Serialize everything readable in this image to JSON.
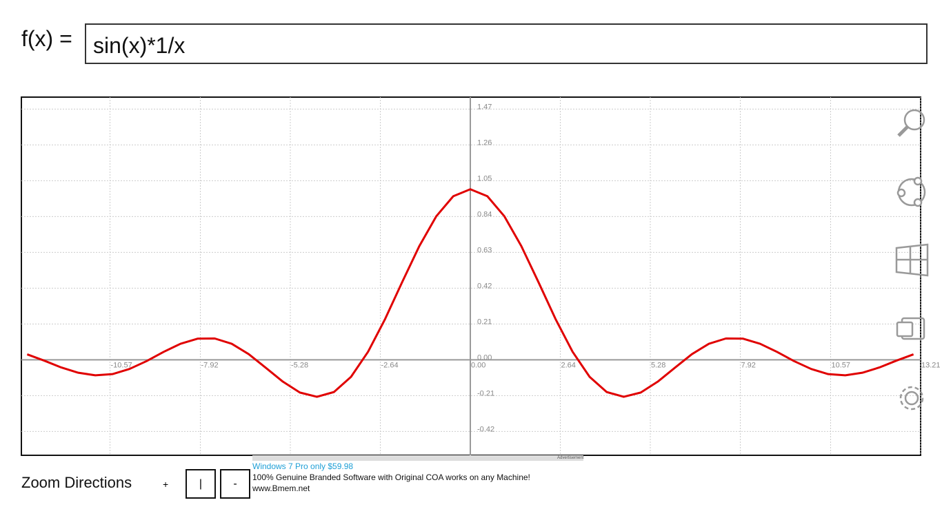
{
  "header": {
    "label": "f(x) =",
    "expression": "sin(x)*1/x"
  },
  "chart_data": {
    "type": "line",
    "color": "#e00000",
    "grid": true,
    "xlim": [
      -13.17,
      13.21
    ],
    "ylim": [
      -0.56,
      1.54
    ],
    "xticks": [
      -10.57,
      -7.92,
      -5.28,
      -2.64,
      {
        "value": 0,
        "label": "0.00"
      },
      2.64,
      5.28,
      7.92,
      10.57,
      13.21
    ],
    "yticks": [
      -0.42,
      -0.21,
      {
        "value": 0,
        "label": "0.00"
      },
      0.21,
      0.42,
      0.63,
      0.84,
      1.05,
      1.26,
      1.47
    ],
    "x": [
      -13,
      -12.5,
      -12,
      -11.5,
      -11,
      -10.5,
      -10,
      -9.5,
      -9,
      -8.5,
      -8,
      -7.5,
      -7,
      -6.5,
      -6,
      -5.5,
      -5,
      -4.5,
      -4,
      -3.5,
      -3,
      -2.5,
      -2,
      -1.5,
      -1,
      -0.5,
      0,
      0.5,
      1,
      1.5,
      2,
      2.5,
      3,
      3.5,
      4,
      4.5,
      5,
      5.5,
      6,
      6.5,
      7,
      7.5,
      8,
      8.5,
      9,
      9.5,
      10,
      10.5,
      11,
      11.5,
      12,
      12.5,
      13
    ],
    "values": [
      0.032,
      -0.005,
      -0.045,
      -0.076,
      -0.091,
      -0.084,
      -0.054,
      -0.008,
      0.046,
      0.094,
      0.124,
      0.125,
      0.094,
      0.033,
      -0.047,
      -0.128,
      -0.192,
      -0.217,
      -0.189,
      -0.1,
      0.047,
      0.239,
      0.455,
      0.665,
      0.841,
      0.959,
      1,
      0.959,
      0.841,
      0.665,
      0.455,
      0.239,
      0.047,
      -0.1,
      -0.189,
      -0.217,
      -0.192,
      -0.128,
      -0.047,
      0.033,
      0.094,
      0.125,
      0.124,
      0.094,
      0.046,
      -0.008,
      -0.054,
      -0.084,
      -0.091,
      -0.076,
      -0.045,
      -0.005,
      0.032
    ]
  },
  "zoom": {
    "label": "Zoom Directions",
    "plus": "+",
    "buttons": [
      "|",
      "-"
    ]
  },
  "ad": {
    "tag": "Advertisement",
    "headline": "Windows 7 Pro only $59.98",
    "text": "100% Genuine Branded Software with Original COA works on any Machine!",
    "url": "www.Bmem.net"
  }
}
